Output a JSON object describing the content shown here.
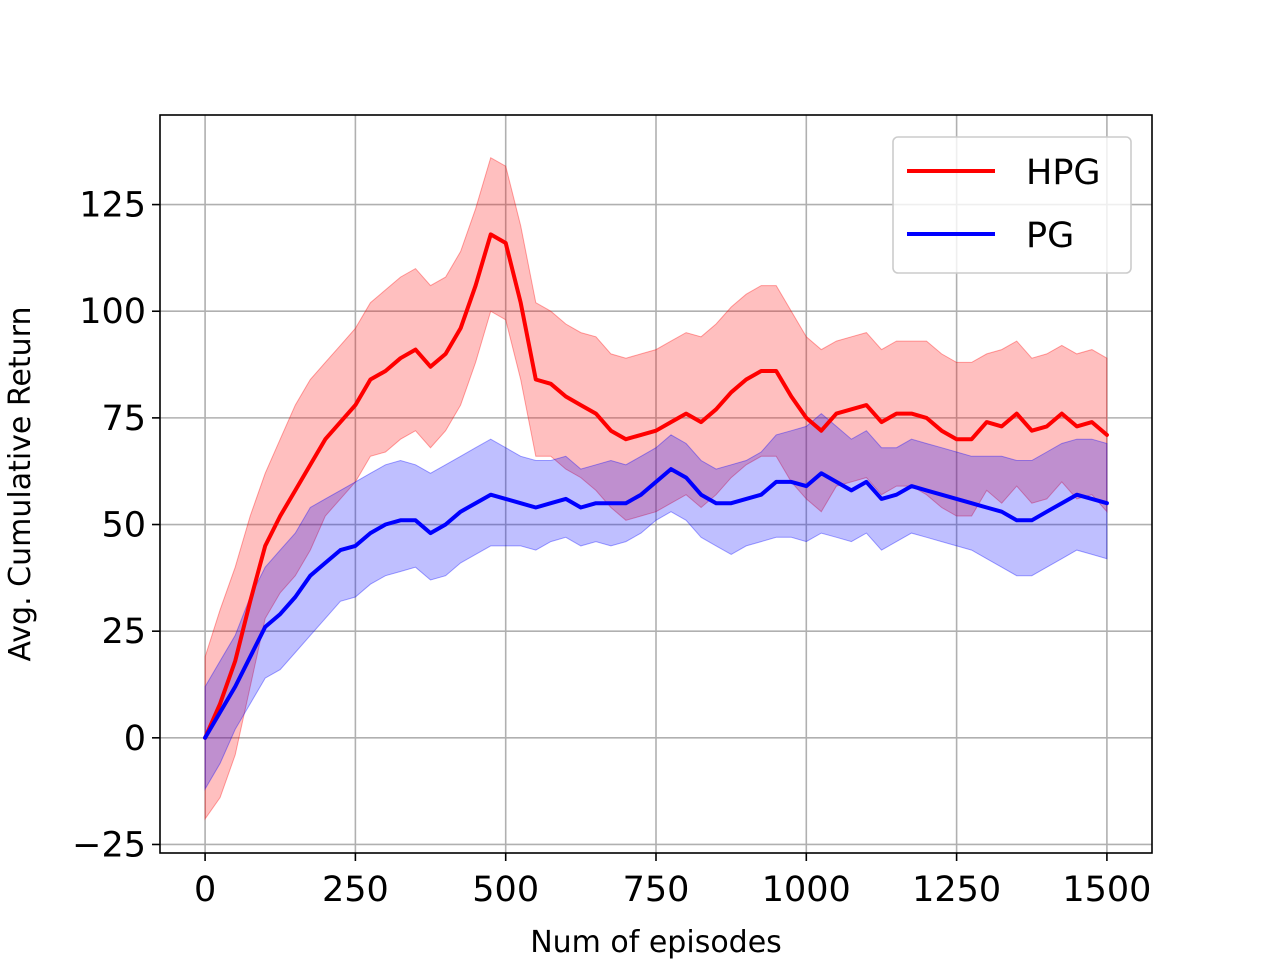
{
  "chart_data": {
    "type": "line",
    "title": "",
    "xlabel": "Num of episodes",
    "ylabel": "Avg. Cumulative Return",
    "xlim": [
      -75,
      1575
    ],
    "ylim": [
      -27,
      146
    ],
    "xticks": [
      0,
      250,
      500,
      750,
      1000,
      1250,
      1500
    ],
    "yticks": [
      -25,
      0,
      25,
      50,
      75,
      100,
      125
    ],
    "xtick_labels": [
      "0",
      "250",
      "500",
      "750",
      "1000",
      "1250",
      "1500"
    ],
    "ytick_labels": [
      "−25",
      "0",
      "25",
      "50",
      "75",
      "100",
      "125"
    ],
    "grid": true,
    "legend": {
      "position": "top-right"
    },
    "x": [
      0,
      25,
      50,
      75,
      100,
      125,
      150,
      175,
      200,
      225,
      250,
      275,
      300,
      325,
      350,
      375,
      400,
      425,
      450,
      475,
      500,
      525,
      550,
      575,
      600,
      625,
      650,
      675,
      700,
      725,
      750,
      775,
      800,
      825,
      850,
      875,
      900,
      925,
      950,
      975,
      1000,
      1025,
      1050,
      1075,
      1100,
      1125,
      1150,
      1175,
      1200,
      1225,
      1250,
      1275,
      1300,
      1325,
      1350,
      1375,
      1400,
      1425,
      1450,
      1475,
      1500
    ],
    "series": [
      {
        "name": "HPG",
        "color": "#ff0000",
        "band_color": "#ff0000",
        "values": [
          0,
          8,
          18,
          32,
          45,
          52,
          58,
          64,
          70,
          74,
          78,
          84,
          86,
          89,
          91,
          87,
          90,
          96,
          106,
          118,
          116,
          102,
          84,
          83,
          80,
          78,
          76,
          72,
          70,
          71,
          72,
          74,
          76,
          74,
          77,
          81,
          84,
          86,
          86,
          80,
          75,
          72,
          76,
          77,
          78,
          74,
          76,
          76,
          75,
          72,
          70,
          70,
          74,
          73,
          76,
          72,
          73,
          76,
          73,
          74,
          71
        ],
        "upper": [
          19,
          30,
          40,
          52,
          62,
          70,
          78,
          84,
          88,
          92,
          96,
          102,
          105,
          108,
          110,
          106,
          108,
          114,
          124,
          136,
          134,
          120,
          102,
          100,
          97,
          95,
          94,
          90,
          89,
          90,
          91,
          93,
          95,
          94,
          97,
          101,
          104,
          106,
          106,
          100,
          94,
          91,
          93,
          94,
          95,
          91,
          93,
          93,
          93,
          90,
          88,
          88,
          90,
          91,
          93,
          89,
          90,
          92,
          90,
          91,
          89
        ],
        "lower": [
          -19,
          -14,
          -4,
          12,
          28,
          34,
          38,
          44,
          52,
          56,
          60,
          66,
          67,
          70,
          72,
          68,
          72,
          78,
          88,
          100,
          98,
          84,
          66,
          66,
          63,
          61,
          58,
          54,
          51,
          52,
          53,
          55,
          57,
          54,
          57,
          61,
          64,
          66,
          66,
          60,
          56,
          53,
          59,
          60,
          61,
          57,
          59,
          59,
          57,
          54,
          52,
          52,
          58,
          55,
          59,
          55,
          56,
          60,
          56,
          57,
          53
        ]
      },
      {
        "name": "PG",
        "color": "#0000ff",
        "band_color": "#0000ff",
        "values": [
          0,
          6,
          12,
          19,
          26,
          29,
          33,
          38,
          41,
          44,
          45,
          48,
          50,
          51,
          51,
          48,
          50,
          53,
          55,
          57,
          56,
          55,
          54,
          55,
          56,
          54,
          55,
          55,
          55,
          57,
          60,
          63,
          61,
          57,
          55,
          55,
          56,
          57,
          60,
          60,
          59,
          62,
          60,
          58,
          60,
          56,
          57,
          59,
          58,
          57,
          56,
          55,
          54,
          53,
          51,
          51,
          53,
          55,
          57,
          56,
          55
        ],
        "upper": [
          12,
          18,
          24,
          33,
          40,
          44,
          48,
          54,
          56,
          58,
          60,
          62,
          64,
          65,
          64,
          62,
          64,
          66,
          68,
          70,
          68,
          66,
          65,
          65,
          66,
          63,
          64,
          65,
          64,
          66,
          68,
          71,
          69,
          65,
          63,
          64,
          65,
          67,
          71,
          72,
          73,
          76,
          73,
          70,
          72,
          68,
          68,
          70,
          69,
          68,
          67,
          66,
          66,
          66,
          65,
          65,
          67,
          69,
          70,
          70,
          69
        ],
        "lower": [
          -12,
          -6,
          2,
          8,
          14,
          16,
          20,
          24,
          28,
          32,
          33,
          36,
          38,
          39,
          40,
          37,
          38,
          41,
          43,
          45,
          45,
          45,
          44,
          46,
          47,
          45,
          46,
          45,
          46,
          48,
          51,
          53,
          51,
          47,
          45,
          43,
          45,
          46,
          47,
          47,
          46,
          48,
          47,
          46,
          48,
          44,
          46,
          48,
          47,
          46,
          45,
          44,
          42,
          40,
          38,
          38,
          40,
          42,
          44,
          43,
          42
        ]
      }
    ]
  }
}
